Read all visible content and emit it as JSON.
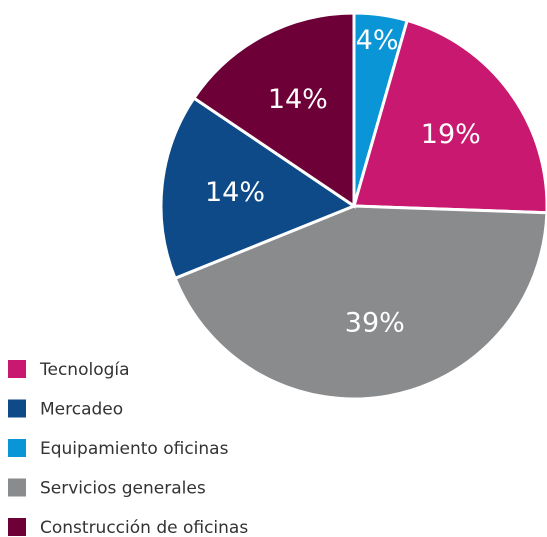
{
  "chart_data": {
    "type": "pie",
    "categories": [
      "Equipamiento oficinas",
      "Tecnología",
      "Servicios generales",
      "Mercadeo",
      "Construcción de oficinas"
    ],
    "values": [
      4,
      19,
      39,
      14,
      14
    ],
    "value_labels": [
      "4%",
      "19%",
      "39%",
      "14%",
      "14%"
    ],
    "colors": [
      "#0a96d6",
      "#c8186f",
      "#8a8b8d",
      "#0d4a87",
      "#6d0037"
    ],
    "legend": "bottom-left"
  }
}
